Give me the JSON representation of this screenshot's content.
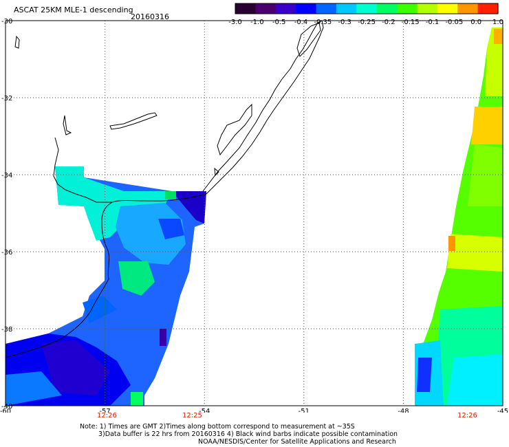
{
  "title": "ASCAT 25KM MLE-1 descending",
  "date": "20160316",
  "colorbar": {
    "labels": [
      "-3.0",
      "-1.0",
      "-0.5",
      "-0.4",
      "-0.35",
      "-0.3",
      "-0.25",
      "-0.2",
      "-0.15",
      "-0.1",
      "-0.05",
      "0.0",
      "1.0"
    ],
    "colors": [
      "#2a0030",
      "#4b0070",
      "#3a00c8",
      "#0000ff",
      "#0066ff",
      "#00c8ff",
      "#00ffd0",
      "#00ff60",
      "#3cff00",
      "#b4ff00",
      "#ffff00",
      "#ff9600",
      "#ff2000"
    ]
  },
  "axes": {
    "lat_labels": [
      "-30",
      "-32",
      "-34",
      "-36",
      "-38",
      "-40"
    ],
    "lon_labels": [
      "-60",
      "-57",
      "-54",
      "-51",
      "-48",
      "-45"
    ]
  },
  "times": [
    "12:26",
    "12:25",
    "12:26"
  ],
  "note": [
    "Note: 1) Times are GMT 2)Times along bottom correspond to measurement at ~35S",
    "3)Data buffer is 22 hrs from 20160316 4) Black wind barbs indicate possible contamination",
    "NOAA/NESDIS/Center for Satellite Applications and Research"
  ]
}
